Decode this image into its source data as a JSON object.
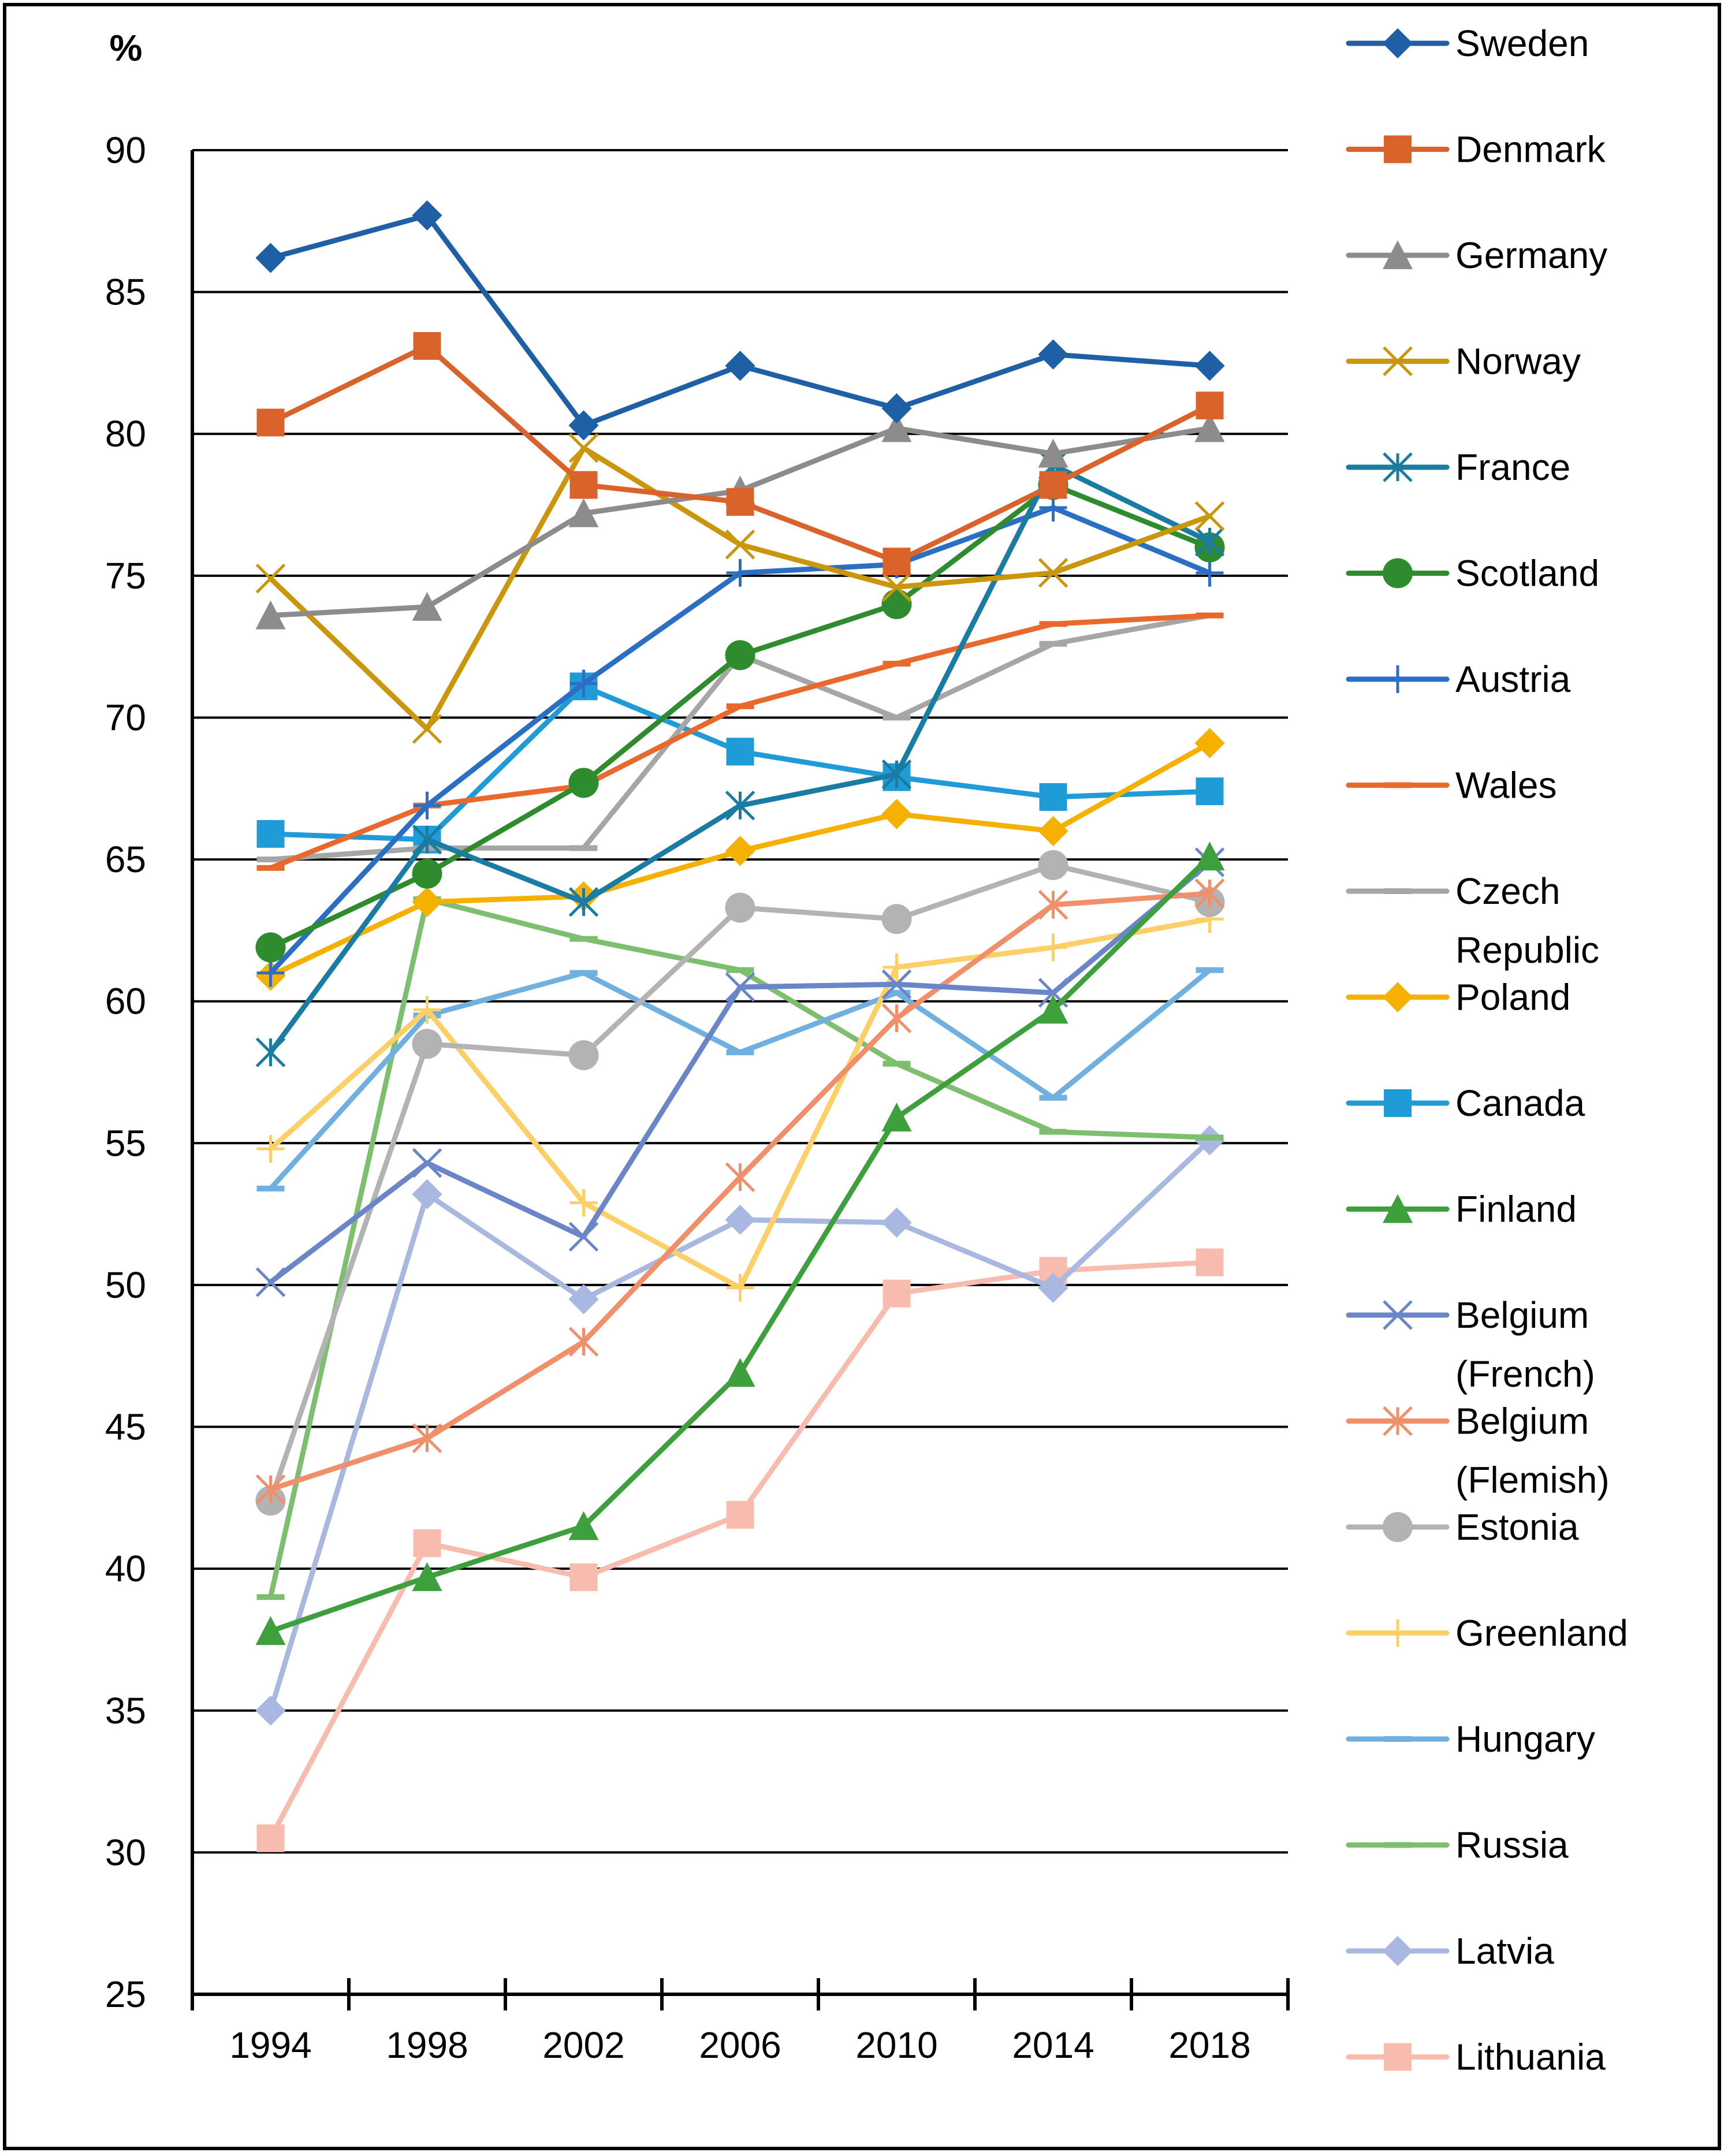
{
  "chart_data": {
    "type": "line",
    "title": "",
    "xlabel": "",
    "ylabel": "%",
    "ylim": [
      25,
      90
    ],
    "yticks": [
      25,
      30,
      35,
      40,
      45,
      50,
      55,
      60,
      65,
      70,
      75,
      80,
      85,
      90
    ],
    "yticks_labels": [
      "25",
      "30",
      "35",
      "40",
      "45",
      "50",
      "55",
      "60",
      "65",
      "70",
      "75",
      "80",
      "85",
      "90"
    ],
    "grid": true,
    "legend_position": "right",
    "categories": [
      "1994",
      "1998",
      "2002",
      "2006",
      "2010",
      "2014",
      "2018"
    ],
    "series": [
      {
        "name": "Sweden",
        "color": "#1f5fa6",
        "marker": "diamond",
        "values": [
          86.2,
          87.7,
          80.3,
          82.4,
          80.9,
          82.8,
          82.4
        ]
      },
      {
        "name": "Denmark",
        "color": "#d9632a",
        "marker": "square",
        "values": [
          80.4,
          83.1,
          78.2,
          77.6,
          75.5,
          78.2,
          81.0
        ]
      },
      {
        "name": "Germany",
        "color": "#8c8c8c",
        "marker": "triangle",
        "values": [
          73.6,
          73.9,
          77.2,
          78.0,
          80.2,
          79.3,
          80.2
        ]
      },
      {
        "name": "Norway",
        "color": "#c9960c",
        "marker": "x",
        "values": [
          74.9,
          69.6,
          79.5,
          76.1,
          74.6,
          75.1,
          77.1
        ]
      },
      {
        "name": "France",
        "color": "#1a7ba3",
        "marker": "asterisk",
        "values": [
          58.2,
          65.7,
          63.5,
          66.9,
          68.0,
          78.9,
          76.2
        ]
      },
      {
        "name": "Scotland",
        "color": "#2e8b2e",
        "marker": "circle",
        "values": [
          61.9,
          64.5,
          67.7,
          72.2,
          74.0,
          78.2,
          76.0
        ]
      },
      {
        "name": "Austria",
        "color": "#2a6fc4",
        "marker": "plus",
        "values": [
          61.0,
          66.9,
          71.2,
          75.1,
          75.4,
          77.4,
          75.1
        ]
      },
      {
        "name": "Wales",
        "color": "#e8692b",
        "marker": "dash",
        "values": [
          64.7,
          66.9,
          67.6,
          70.4,
          71.9,
          73.3,
          73.6
        ]
      },
      {
        "name": "Czech Republic",
        "color": "#a6a6a6",
        "marker": "dash",
        "values": [
          65.0,
          65.4,
          65.4,
          72.2,
          70.0,
          72.6,
          73.6
        ]
      },
      {
        "name": "Poland",
        "color": "#f5b000",
        "marker": "diamond",
        "values": [
          60.9,
          63.5,
          63.7,
          65.3,
          66.6,
          66.0,
          69.1
        ]
      },
      {
        "name": "Canada",
        "color": "#1f9bd7",
        "marker": "square",
        "values": [
          65.9,
          65.7,
          71.1,
          68.8,
          67.9,
          67.2,
          67.4
        ]
      },
      {
        "name": "Finland",
        "color": "#3da03d",
        "marker": "triangle",
        "values": [
          37.8,
          39.7,
          41.5,
          46.9,
          55.9,
          59.7,
          65.1
        ]
      },
      {
        "name": "Belgium (French)",
        "color": "#6a85c8",
        "marker": "x",
        "values": [
          50.1,
          54.3,
          51.7,
          60.5,
          60.6,
          60.3,
          64.9
        ]
      },
      {
        "name": "Belgium (Flemish)",
        "color": "#f28f6b",
        "marker": "asterisk",
        "values": [
          42.8,
          44.6,
          48.0,
          53.8,
          59.4,
          63.4,
          63.8
        ]
      },
      {
        "name": "Estonia",
        "color": "#b3b3b3",
        "marker": "circle",
        "values": [
          42.4,
          58.5,
          58.1,
          63.3,
          62.9,
          64.8,
          63.5
        ]
      },
      {
        "name": "Greenland",
        "color": "#fdd067",
        "marker": "plus",
        "values": [
          54.8,
          59.7,
          52.9,
          49.9,
          61.2,
          61.9,
          62.9
        ]
      },
      {
        "name": "Hungary",
        "color": "#6fb0e0",
        "marker": "dash",
        "values": [
          53.4,
          59.5,
          61.0,
          58.2,
          60.3,
          56.6,
          61.1
        ]
      },
      {
        "name": "Russia",
        "color": "#7dbf6e",
        "marker": "dash",
        "values": [
          39.0,
          63.6,
          62.2,
          61.1,
          57.8,
          55.4,
          55.2
        ]
      },
      {
        "name": "Latvia",
        "color": "#a8b8e0",
        "marker": "diamond",
        "values": [
          35.0,
          53.2,
          49.5,
          52.3,
          52.2,
          49.9,
          55.1
        ]
      },
      {
        "name": "Lithuania",
        "color": "#f8bcae",
        "marker": "square",
        "values": [
          30.5,
          40.9,
          39.7,
          41.9,
          49.7,
          50.5,
          50.8
        ]
      }
    ]
  }
}
